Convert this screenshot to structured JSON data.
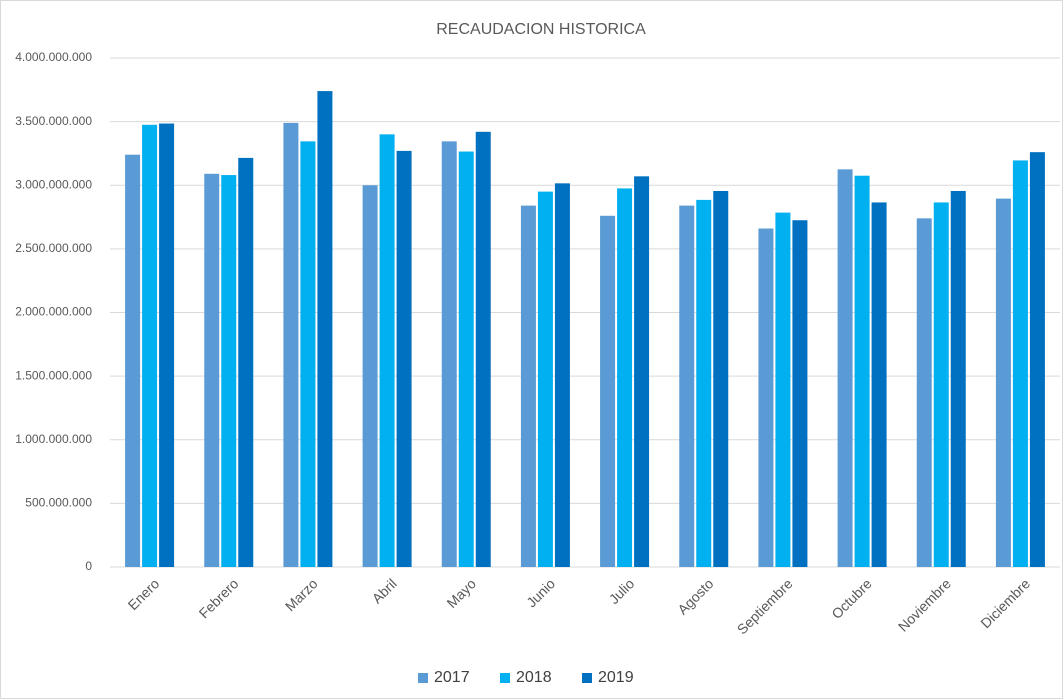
{
  "chart_data": {
    "type": "bar",
    "title": "RECAUDACION HISTORICA",
    "categories": [
      "Enero",
      "Febrero",
      "Marzo",
      "Abril",
      "Mayo",
      "Junio",
      "Julio",
      "Agosto",
      "Septiembre",
      "Octubre",
      "Noviembre",
      "Diciembre"
    ],
    "series": [
      {
        "name": "2017",
        "color": "#5b9bd5",
        "values": [
          3240000000,
          3090000000,
          3490000000,
          3000000000,
          3345000000,
          2840000000,
          2760000000,
          2840000000,
          2660000000,
          3125000000,
          2740000000,
          2895000000
        ]
      },
      {
        "name": "2018",
        "color": "#00b0f0",
        "values": [
          3475000000,
          3080000000,
          3345000000,
          3400000000,
          3265000000,
          2950000000,
          2975000000,
          2885000000,
          2785000000,
          3075000000,
          2865000000,
          3195000000
        ]
      },
      {
        "name": "2019",
        "color": "#0070c0",
        "values": [
          3485000000,
          3215000000,
          3740000000,
          3270000000,
          3420000000,
          3015000000,
          3070000000,
          2955000000,
          2725000000,
          2865000000,
          2955000000,
          3260000000
        ]
      }
    ],
    "ylim": [
      0,
      4000000000
    ],
    "yticks": [
      0,
      {
        "value": 500000000,
        "label": "500.000.000"
      },
      {
        "value": 1000000000,
        "label": "1.000.000.000"
      },
      {
        "value": 1500000000,
        "label": "1.500.000.000"
      },
      {
        "value": 2000000000,
        "label": "2.000.000.000"
      },
      {
        "value": 2500000000,
        "label": "2.500.000.000"
      },
      {
        "value": 3000000000,
        "label": "3.000.000.000"
      },
      {
        "value": 3500000000,
        "label": "3.500.000.000"
      },
      {
        "value": 4000000000,
        "label": "4.000.000.000"
      }
    ],
    "grid": true,
    "legend": "bottom"
  }
}
